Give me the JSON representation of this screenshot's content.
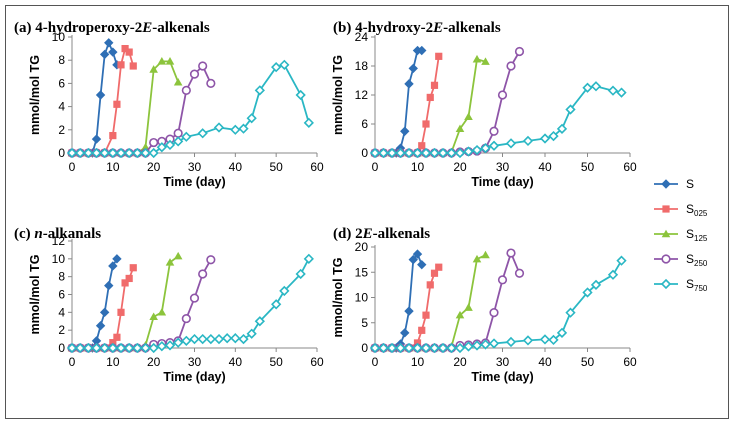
{
  "figure": {
    "legend": [
      "S",
      "S025",
      "S125",
      "S250",
      "S750"
    ]
  },
  "chart_data": [
    {
      "type": "line",
      "title": "(a) 4-hydroperoxy-2E-alkenals",
      "xlabel": "Time (day)",
      "ylabel": "mmol/mol TG",
      "xlim": [
        0,
        60
      ],
      "ylim": [
        0,
        10
      ],
      "xticks": [
        0,
        10,
        20,
        30,
        40,
        50,
        60
      ],
      "yticks": [
        0,
        2,
        4,
        6,
        8,
        10
      ],
      "series": [
        {
          "name": "S",
          "color": "#2f6fb5",
          "marker": "diamond",
          "x": [
            0,
            2,
            4,
            5,
            6,
            7,
            8,
            9,
            10,
            11
          ],
          "y": [
            0,
            0,
            0,
            0,
            1.2,
            5.0,
            8.5,
            9.5,
            8.7,
            7.6
          ]
        },
        {
          "name": "S025",
          "color": "#f06b6b",
          "marker": "square",
          "x": [
            0,
            2,
            4,
            6,
            8,
            10,
            11,
            12,
            13,
            14,
            15
          ],
          "y": [
            0,
            0,
            0,
            0,
            0,
            1.5,
            4.2,
            7.6,
            9.0,
            8.7,
            7.5
          ]
        },
        {
          "name": "S125",
          "color": "#8cc43c",
          "marker": "triangle",
          "x": [
            0,
            2,
            4,
            6,
            8,
            10,
            12,
            14,
            16,
            18,
            20,
            22,
            24,
            26
          ],
          "y": [
            0,
            0,
            0,
            0,
            0,
            0,
            0,
            0,
            0,
            0.5,
            7.2,
            7.9,
            7.9,
            6.1
          ]
        },
        {
          "name": "S250",
          "color": "#8e55a8",
          "marker": "circle",
          "x": [
            0,
            2,
            4,
            6,
            8,
            10,
            12,
            14,
            16,
            18,
            20,
            22,
            24,
            26,
            28,
            30,
            32,
            34
          ],
          "y": [
            0,
            0,
            0,
            0,
            0,
            0,
            0,
            0,
            0,
            0,
            0.9,
            1.0,
            1.2,
            1.7,
            5.4,
            6.8,
            7.5,
            6.0
          ]
        },
        {
          "name": "S750",
          "color": "#2ab7c4",
          "marker": "diamond-open",
          "x": [
            0,
            2,
            4,
            6,
            8,
            10,
            12,
            14,
            16,
            18,
            20,
            22,
            24,
            26,
            28,
            32,
            36,
            40,
            42,
            44,
            46,
            50,
            52,
            56,
            58
          ],
          "y": [
            0,
            0,
            0,
            0,
            0,
            0,
            0,
            0,
            0,
            0,
            0,
            0.5,
            0.7,
            1.0,
            1.4,
            1.7,
            2.2,
            2.0,
            2.1,
            3.0,
            5.4,
            7.4,
            7.6,
            5.0,
            2.6
          ]
        }
      ]
    },
    {
      "type": "line",
      "title": "(b) 4-hydroxy-2E-alkenals",
      "xlabel": "Time (day)",
      "ylabel": "mmol/mol TG",
      "xlim": [
        0,
        60
      ],
      "ylim": [
        0,
        24
      ],
      "xticks": [
        0,
        10,
        20,
        30,
        40,
        50,
        60
      ],
      "yticks": [
        0,
        6,
        12,
        18,
        24
      ],
      "series": [
        {
          "name": "S",
          "color": "#2f6fb5",
          "marker": "diamond",
          "x": [
            0,
            2,
            4,
            5,
            6,
            7,
            8,
            9,
            10,
            11
          ],
          "y": [
            0,
            0,
            0,
            0,
            1.0,
            4.5,
            14.3,
            17.5,
            21.2,
            21.2
          ]
        },
        {
          "name": "S025",
          "color": "#f06b6b",
          "marker": "square",
          "x": [
            0,
            2,
            4,
            6,
            8,
            10,
            11,
            12,
            13,
            14,
            15
          ],
          "y": [
            0,
            0,
            0,
            0,
            0,
            0,
            1.5,
            6.0,
            11.5,
            14.0,
            20.0
          ]
        },
        {
          "name": "S125",
          "color": "#8cc43c",
          "marker": "triangle",
          "x": [
            0,
            2,
            4,
            6,
            8,
            10,
            12,
            14,
            16,
            18,
            20,
            22,
            24,
            26
          ],
          "y": [
            0,
            0,
            0,
            0,
            0,
            0,
            0,
            0,
            0,
            0.2,
            5.0,
            7.5,
            19.4,
            18.9
          ]
        },
        {
          "name": "S250",
          "color": "#8e55a8",
          "marker": "circle",
          "x": [
            0,
            2,
            4,
            6,
            8,
            10,
            12,
            14,
            16,
            18,
            20,
            22,
            24,
            26,
            28,
            30,
            32,
            34
          ],
          "y": [
            0,
            0,
            0,
            0,
            0,
            0,
            0,
            0,
            0,
            0,
            0.2,
            0.3,
            0.4,
            1.0,
            4.5,
            12.0,
            18.0,
            21.0
          ]
        },
        {
          "name": "S750",
          "color": "#2ab7c4",
          "marker": "diamond-open",
          "x": [
            0,
            2,
            4,
            6,
            8,
            10,
            12,
            14,
            16,
            18,
            20,
            22,
            24,
            26,
            28,
            32,
            36,
            40,
            42,
            44,
            46,
            50,
            52,
            56,
            58
          ],
          "y": [
            0,
            0,
            0,
            0,
            0,
            0,
            0,
            0,
            0,
            0,
            0,
            0.3,
            0.6,
            1.0,
            1.5,
            2.0,
            2.5,
            3.0,
            3.5,
            5.0,
            9.0,
            13.5,
            13.8,
            12.9,
            12.5
          ]
        }
      ]
    },
    {
      "type": "line",
      "title": "(c) n-alkanals",
      "xlabel": "Time (day)",
      "ylabel": "mmol/mol TG",
      "xlim": [
        0,
        60
      ],
      "ylim": [
        0,
        12
      ],
      "xticks": [
        0,
        10,
        20,
        30,
        40,
        50,
        60
      ],
      "yticks": [
        0,
        2,
        4,
        6,
        8,
        10,
        12
      ],
      "series": [
        {
          "name": "S",
          "color": "#2f6fb5",
          "marker": "diamond",
          "x": [
            0,
            2,
            4,
            5,
            6,
            7,
            8,
            9,
            10,
            11
          ],
          "y": [
            0,
            0,
            0,
            0,
            0.8,
            2.5,
            4.0,
            7.0,
            9.2,
            10.0
          ]
        },
        {
          "name": "S025",
          "color": "#f06b6b",
          "marker": "square",
          "x": [
            0,
            2,
            4,
            6,
            8,
            10,
            11,
            12,
            13,
            14,
            15
          ],
          "y": [
            0,
            0,
            0,
            0,
            0,
            0.6,
            1.2,
            4.0,
            7.3,
            7.8,
            9.0
          ]
        },
        {
          "name": "S125",
          "color": "#8cc43c",
          "marker": "triangle",
          "x": [
            0,
            2,
            4,
            6,
            8,
            10,
            12,
            14,
            16,
            18,
            20,
            22,
            24,
            26
          ],
          "y": [
            0,
            0,
            0,
            0,
            0,
            0,
            0,
            0,
            0,
            0.3,
            3.5,
            4.0,
            9.6,
            10.3
          ]
        },
        {
          "name": "S250",
          "color": "#8e55a8",
          "marker": "circle",
          "x": [
            0,
            2,
            4,
            6,
            8,
            10,
            12,
            14,
            16,
            18,
            20,
            22,
            24,
            26,
            28,
            30,
            32,
            34
          ],
          "y": [
            0,
            0,
            0,
            0,
            0,
            0,
            0,
            0,
            0,
            0,
            0.4,
            0.5,
            0.6,
            0.8,
            3.3,
            5.6,
            8.3,
            9.9
          ]
        },
        {
          "name": "S750",
          "color": "#2ab7c4",
          "marker": "diamond-open",
          "x": [
            0,
            2,
            4,
            6,
            8,
            10,
            12,
            14,
            16,
            18,
            20,
            22,
            24,
            26,
            28,
            30,
            32,
            34,
            36,
            38,
            40,
            42,
            44,
            46,
            50,
            52,
            56,
            58
          ],
          "y": [
            0,
            0,
            0,
            0,
            0,
            0,
            0,
            0,
            0,
            0,
            0,
            0.2,
            0.3,
            0.6,
            0.8,
            1.0,
            1.0,
            1.0,
            1.0,
            1.1,
            1.1,
            1.0,
            1.6,
            3.0,
            4.9,
            6.4,
            8.3,
            10.0
          ]
        }
      ]
    },
    {
      "type": "line",
      "title": "(d) 2E-alkenals",
      "xlabel": "Time (day)",
      "ylabel": "mmol/mol TG",
      "xlim": [
        0,
        60
      ],
      "ylim": [
        0,
        20
      ],
      "xticks": [
        0,
        10,
        20,
        30,
        40,
        50,
        60
      ],
      "yticks": [
        0,
        5,
        10,
        15,
        20
      ],
      "series": [
        {
          "name": "S",
          "color": "#2f6fb5",
          "marker": "diamond",
          "x": [
            0,
            2,
            4,
            5,
            6,
            7,
            8,
            9,
            10,
            11
          ],
          "y": [
            0,
            0,
            0,
            0,
            0.8,
            3.0,
            7.3,
            17.5,
            18.6,
            16.5
          ]
        },
        {
          "name": "S025",
          "color": "#f06b6b",
          "marker": "square",
          "x": [
            0,
            2,
            4,
            6,
            8,
            10,
            11,
            12,
            13,
            14,
            15
          ],
          "y": [
            0,
            0,
            0,
            0,
            0,
            1.0,
            3.5,
            6.5,
            12.5,
            14.8,
            16.0
          ]
        },
        {
          "name": "S125",
          "color": "#8cc43c",
          "marker": "triangle",
          "x": [
            0,
            2,
            4,
            6,
            8,
            10,
            12,
            14,
            16,
            18,
            20,
            22,
            24,
            26
          ],
          "y": [
            0,
            0,
            0,
            0,
            0,
            0,
            0,
            0,
            0,
            0.3,
            6.5,
            8.0,
            17.6,
            18.4
          ]
        },
        {
          "name": "S250",
          "color": "#8e55a8",
          "marker": "circle",
          "x": [
            0,
            2,
            4,
            6,
            8,
            10,
            12,
            14,
            16,
            18,
            20,
            22,
            24,
            26,
            28,
            30,
            32,
            34
          ],
          "y": [
            0,
            0,
            0,
            0,
            0,
            0,
            0,
            0,
            0,
            0,
            0.5,
            0.6,
            0.8,
            1.0,
            7.0,
            13.5,
            18.8,
            14.8
          ]
        },
        {
          "name": "S750",
          "color": "#2ab7c4",
          "marker": "diamond-open",
          "x": [
            0,
            2,
            4,
            6,
            8,
            10,
            12,
            14,
            16,
            18,
            20,
            22,
            24,
            26,
            28,
            32,
            36,
            40,
            42,
            44,
            46,
            50,
            52,
            56,
            58
          ],
          "y": [
            0,
            0,
            0,
            0,
            0,
            0,
            0,
            0,
            0,
            0,
            0,
            0.3,
            0.5,
            0.7,
            0.9,
            1.2,
            1.5,
            1.7,
            1.6,
            3.0,
            7.0,
            11.0,
            12.5,
            14.5,
            17.3
          ]
        }
      ]
    }
  ]
}
